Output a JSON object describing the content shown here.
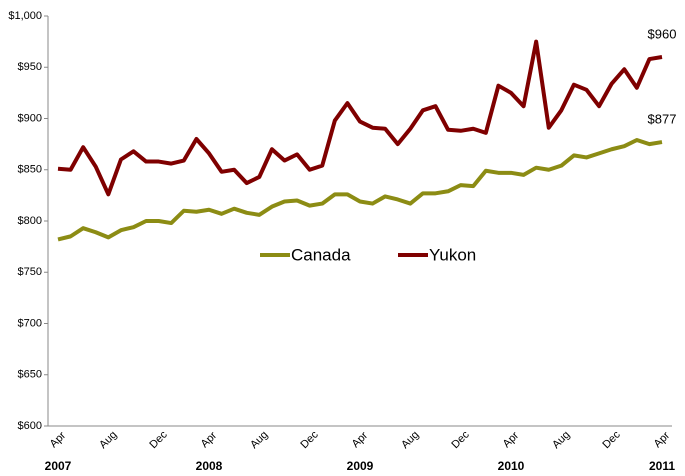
{
  "chart_data": {
    "type": "line",
    "categories": [
      "Apr",
      null,
      null,
      null,
      "Aug",
      null,
      null,
      null,
      "Dec",
      null,
      null,
      null,
      "Apr",
      null,
      null,
      null,
      "Aug",
      null,
      null,
      null,
      "Dec",
      null,
      null,
      null,
      "Apr",
      null,
      null,
      null,
      "Aug",
      null,
      null,
      null,
      "Dec",
      null,
      null,
      null,
      "Apr",
      null,
      null,
      null,
      "Aug",
      null,
      null,
      null,
      "Dec",
      null,
      null,
      null,
      "Apr"
    ],
    "x_groups": [
      {
        "label": "2007",
        "start": 0
      },
      {
        "label": "2008",
        "start": 12
      },
      {
        "label": "2009",
        "start": 24
      },
      {
        "label": "2010",
        "start": 36
      },
      {
        "label": "2011",
        "start": 48
      }
    ],
    "series": [
      {
        "name": "Canada",
        "color": "#8c8c14",
        "values": [
          782,
          785,
          793,
          789,
          784,
          791,
          794,
          800,
          800,
          798,
          810,
          809,
          811,
          807,
          812,
          808,
          806,
          814,
          819,
          820,
          815,
          817,
          826,
          826,
          819,
          817,
          824,
          821,
          817,
          827,
          827,
          829,
          835,
          834,
          849,
          847,
          847,
          845,
          852,
          850,
          854,
          864,
          862,
          866,
          870,
          873,
          879,
          875,
          877
        ],
        "value_labels": [
          null,
          null,
          null,
          null,
          null,
          null,
          null,
          null,
          null,
          null,
          null,
          null,
          null,
          null,
          null,
          null,
          null,
          null,
          null,
          null,
          null,
          null,
          null,
          null,
          null,
          null,
          null,
          null,
          null,
          null,
          null,
          null,
          null,
          null,
          null,
          null,
          null,
          null,
          null,
          null,
          null,
          null,
          null,
          null,
          null,
          null,
          null,
          null,
          "$877"
        ]
      },
      {
        "name": "Yukon",
        "color": "#7f0000",
        "values": [
          851,
          850,
          872,
          853,
          826,
          860,
          868,
          858,
          858,
          856,
          859,
          880,
          866,
          848,
          850,
          837,
          843,
          870,
          859,
          865,
          850,
          854,
          898,
          915,
          897,
          891,
          890,
          875,
          890,
          908,
          912,
          889,
          888,
          890,
          886,
          932,
          925,
          912,
          975,
          891,
          908,
          933,
          928,
          912,
          934,
          948,
          930,
          958,
          960
        ],
        "value_labels": [
          null,
          null,
          null,
          null,
          null,
          null,
          null,
          null,
          null,
          null,
          null,
          null,
          null,
          null,
          null,
          null,
          null,
          null,
          null,
          null,
          null,
          null,
          null,
          null,
          null,
          null,
          null,
          null,
          null,
          null,
          null,
          null,
          null,
          null,
          null,
          null,
          null,
          null,
          null,
          null,
          null,
          null,
          null,
          null,
          null,
          null,
          null,
          null,
          "$960"
        ]
      }
    ],
    "ylim": [
      600,
      1000
    ],
    "yticks": [
      {
        "value": 600,
        "label": "$600"
      },
      {
        "value": 650,
        "label": "$650"
      },
      {
        "value": 700,
        "label": "$700"
      },
      {
        "value": 750,
        "label": "$750"
      },
      {
        "value": 800,
        "label": "$800"
      },
      {
        "value": 850,
        "label": "$850"
      },
      {
        "value": 900,
        "label": "$900"
      },
      {
        "value": 950,
        "label": "$950"
      },
      {
        "value": 1000,
        "label": "$1,000"
      }
    ],
    "grid": false,
    "legend": "center"
  }
}
